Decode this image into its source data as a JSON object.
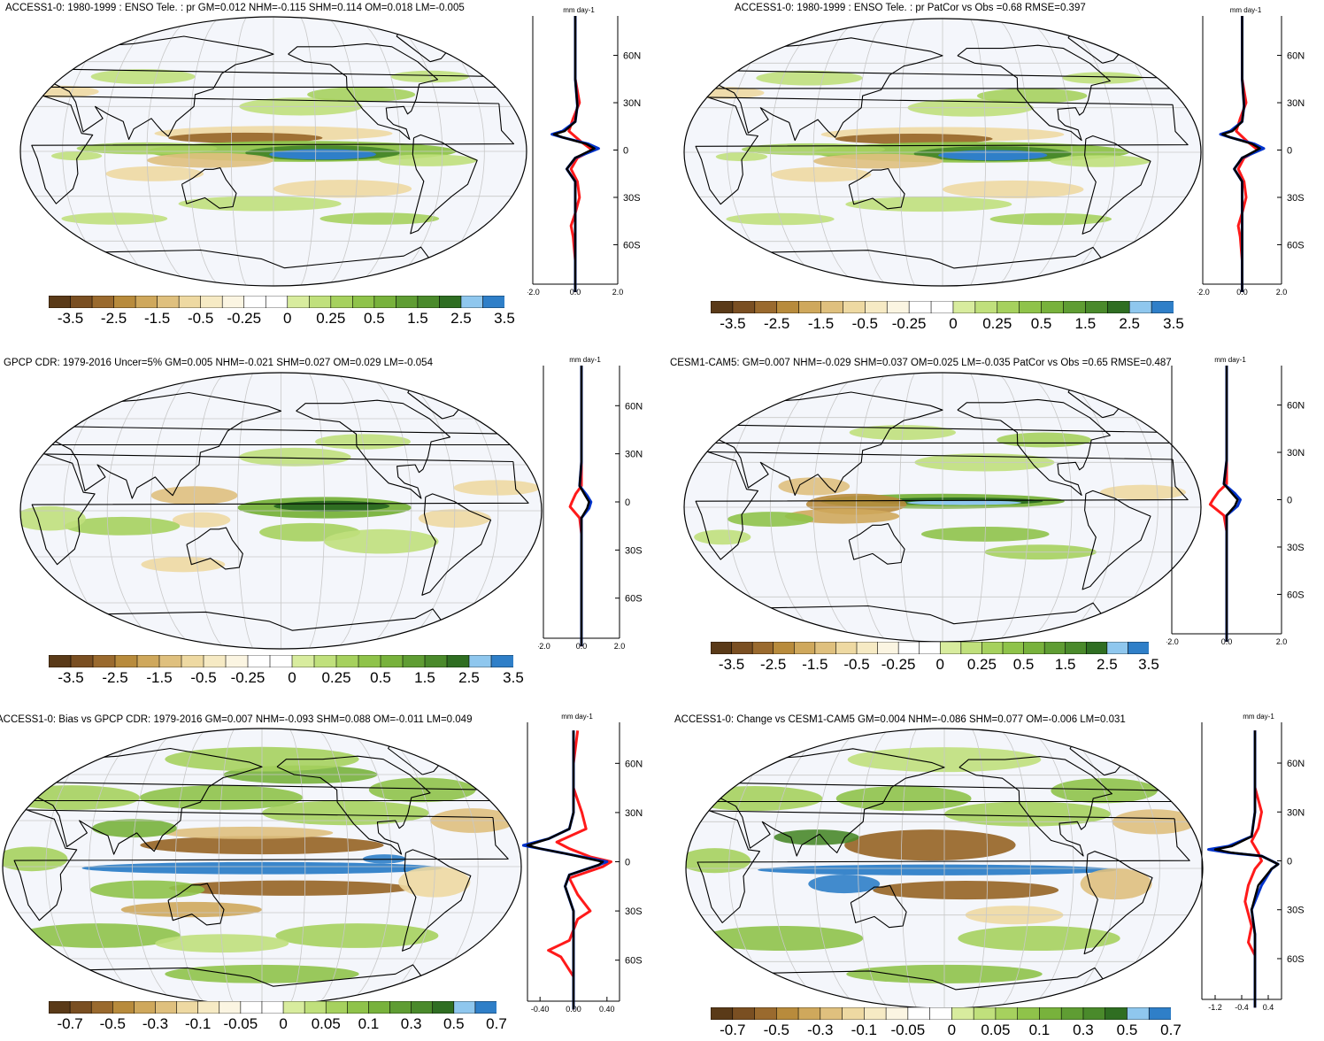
{
  "palette": {
    "anomaly": [
      "#5a3a18",
      "#7a4f22",
      "#9a6a2e",
      "#b88b3c",
      "#cfa85c",
      "#dfc07e",
      "#eed9a2",
      "#f6eac4",
      "#fbf5e2",
      "#ffffff",
      "#ffffff",
      "#d8ec9e",
      "#c0e07c",
      "#a6d15e",
      "#8fc34a",
      "#78b23c",
      "#5f9d33",
      "#4a8a2b",
      "#2f6e22",
      "#8fc7ee",
      "#2f7fc8"
    ],
    "ocean": "#f4f6fb",
    "land_line": "#000000",
    "obs_line": "#ff1a1a",
    "model_line": "#0033cc",
    "mean_line": "#000000"
  },
  "panels": [
    {
      "id": "p1",
      "title": "ACCESS1-0: 1980-1999 : ENSO Tele. : pr GM=0.012 NHM=-0.115 SHM=0.114 OM=0.018 LM=-0.005",
      "unit": "mm day-1",
      "lat_labels": [
        "60N",
        "30N",
        "0",
        "30S",
        "60S"
      ],
      "x_ticks": [
        "-2.0",
        "0.0",
        "2.0"
      ],
      "cbar_labels": [
        "-3.5",
        "-2.5",
        "-1.5",
        "-0.5",
        "-0.25",
        "0",
        "0.25",
        "0.5",
        "1.5",
        "2.5",
        "3.5"
      ],
      "profile": "enso_model"
    },
    {
      "id": "p2",
      "title": "ACCESS1-0: 1980-1999 : ENSO Tele. : pr PatCor vs Obs =0.68 RMSE=0.397",
      "unit": "mm day-1",
      "lat_labels": [
        "60N",
        "30N",
        "0",
        "30S",
        "60S"
      ],
      "x_ticks": [
        "-2.0",
        "0.0",
        "2.0"
      ],
      "cbar_labels": [
        "-3.5",
        "-2.5",
        "-1.5",
        "-0.5",
        "-0.25",
        "0",
        "0.25",
        "0.5",
        "1.5",
        "2.5",
        "3.5"
      ],
      "profile": "enso_model"
    },
    {
      "id": "p3",
      "title": "GPCP CDR: 1979-2016 Uncer=5% GM=0.005 NHM=-0.021 SHM=0.027 OM=0.029 LM=-0.054",
      "unit": "mm day-1",
      "lat_labels": [
        "60N",
        "30N",
        "0",
        "30S",
        "60S"
      ],
      "x_ticks": [
        "-2.0",
        "0.0",
        "2.0"
      ],
      "cbar_labels": [
        "-3.5",
        "-2.5",
        "-1.5",
        "-0.5",
        "-0.25",
        "0",
        "0.25",
        "0.5",
        "1.5",
        "2.5",
        "3.5"
      ],
      "profile": "enso_obs"
    },
    {
      "id": "p4",
      "title": "CESM1-CAM5: GM=0.007 NHM=-0.029 SHM=0.037 OM=0.025 LM=-0.035 PatCor vs Obs =0.65 RMSE=0.487",
      "unit": "mm day-1",
      "lat_labels": [
        "60N",
        "30N",
        "0",
        "30S",
        "60S"
      ],
      "x_ticks": [
        "-2.0",
        "0.0",
        "2.0"
      ],
      "cbar_labels": [
        "-3.5",
        "-2.5",
        "-1.5",
        "-0.5",
        "-0.25",
        "0",
        "0.25",
        "0.5",
        "1.5",
        "2.5",
        "3.5"
      ],
      "profile": "enso_obs"
    },
    {
      "id": "p5",
      "title": "ACCESS1-0: Bias vs GPCP CDR: 1979-2016 GM=0.007 NHM=-0.093 SHM=0.088 OM=-0.011 LM=0.049",
      "unit": "mm day-1",
      "lat_labels": [
        "60N",
        "30N",
        "0",
        "30S",
        "60S"
      ],
      "x_ticks": [
        "-0.40",
        "0.00",
        "0.40"
      ],
      "cbar_labels": [
        "-0.7",
        "-0.5",
        "-0.3",
        "-0.1",
        "-0.05",
        "0",
        "0.05",
        "0.1",
        "0.3",
        "0.5",
        "0.7"
      ],
      "profile": "bias"
    },
    {
      "id": "p6",
      "title": "ACCESS1-0: Change vs CESM1-CAM5 GM=0.004 NHM=-0.086 SHM=0.077 OM=-0.006 LM=0.031",
      "unit": "mm day-1",
      "lat_labels": [
        "60N",
        "30N",
        "0",
        "30S",
        "60S"
      ],
      "x_ticks": [
        "-1.2",
        "-0.4",
        "0.4"
      ],
      "cbar_labels": [
        "-0.7",
        "-0.5",
        "-0.3",
        "-0.1",
        "-0.05",
        "0",
        "0.05",
        "0.1",
        "0.3",
        "0.5",
        "0.7"
      ],
      "profile": "change"
    }
  ]
}
